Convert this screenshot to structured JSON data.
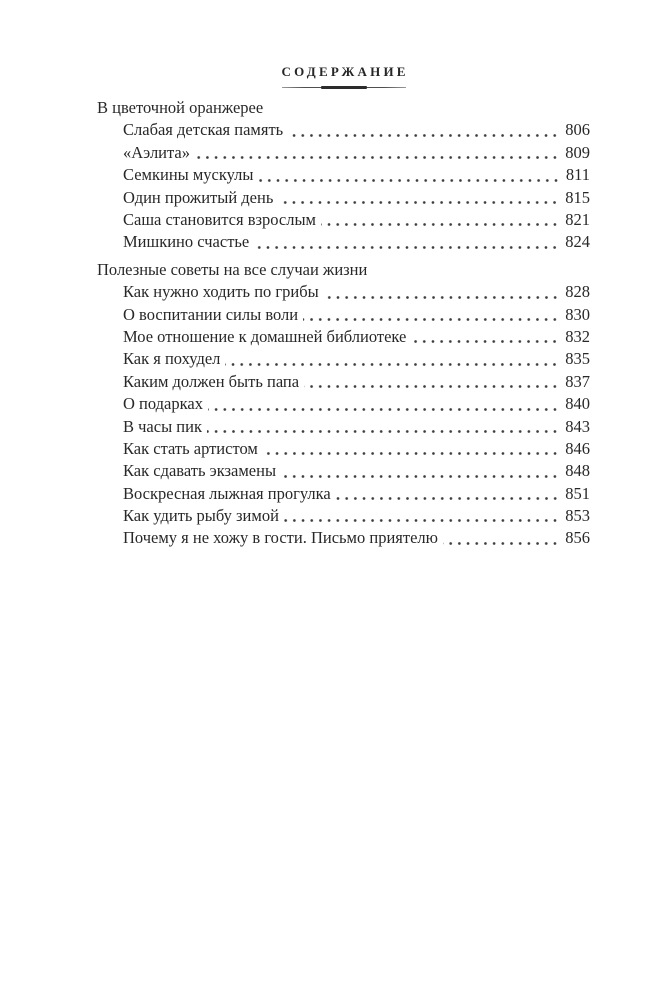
{
  "page": {
    "title": "СОДЕРЖАНИЕ",
    "background_color": "#ffffff",
    "text_color": "#282828",
    "rule_color": "#2c2c2c"
  },
  "sections": [
    {
      "heading": "В цветочной оранжерее",
      "entries": [
        {
          "title": "Слабая детская память",
          "page": "806"
        },
        {
          "title": "«Аэлита»",
          "page": "809"
        },
        {
          "title": "Семкины мускулы",
          "page": "811"
        },
        {
          "title": "Один прожитый день",
          "page": "815"
        },
        {
          "title": "Саша становится взрослым",
          "page": "821"
        },
        {
          "title": "Мишкино счастье",
          "page": "824"
        }
      ]
    },
    {
      "heading": "Полезные советы на все случаи жизни",
      "entries": [
        {
          "title": "Как нужно ходить по грибы",
          "page": "828"
        },
        {
          "title": "О воспитании силы воли",
          "page": "830"
        },
        {
          "title": "Мое отношение к домашней библиотеке",
          "page": "832"
        },
        {
          "title": "Как я похудел",
          "page": "835"
        },
        {
          "title": "Каким должен быть папа",
          "page": "837"
        },
        {
          "title": "О подарках",
          "page": "840"
        },
        {
          "title": "В часы пик",
          "page": "843"
        },
        {
          "title": "Как стать артистом",
          "page": "846"
        },
        {
          "title": "Как сдавать экзамены",
          "page": "848"
        },
        {
          "title": "Воскресная лыжная прогулка",
          "page": "851"
        },
        {
          "title": "Как удить рыбу зимой",
          "page": "853"
        },
        {
          "title": "Почему я не хожу в гости. Письмо приятелю",
          "page": "856"
        }
      ]
    }
  ]
}
